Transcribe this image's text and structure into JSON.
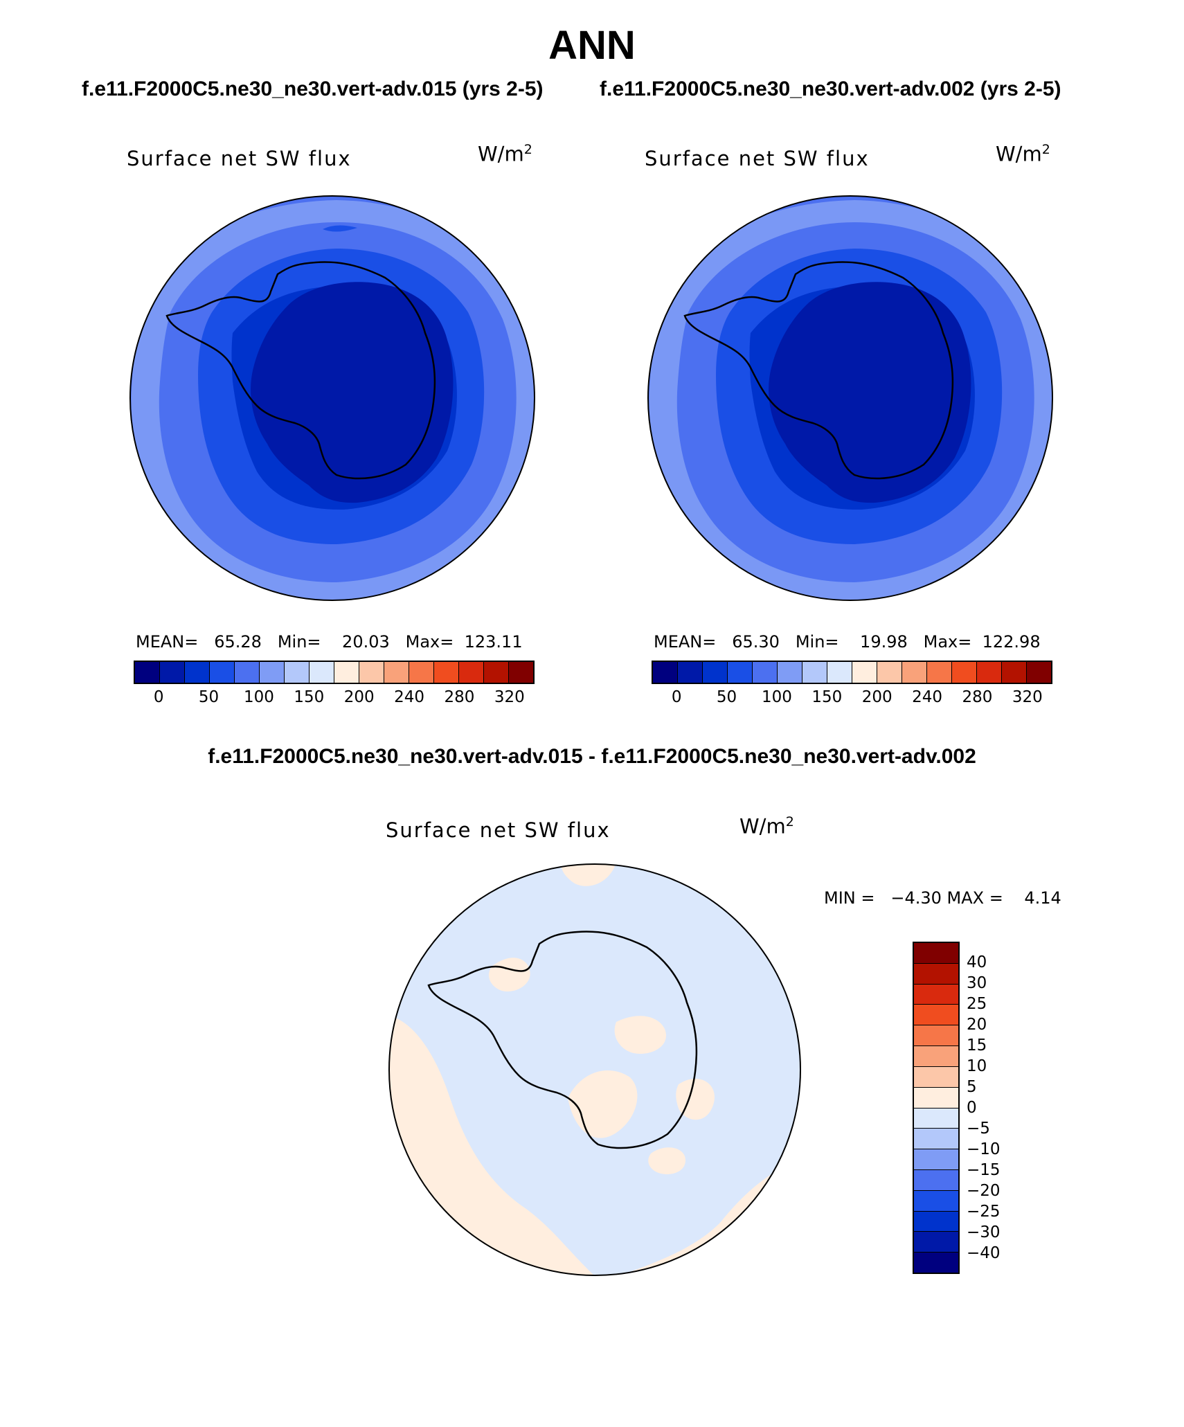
{
  "title": "ANN",
  "panels": [
    {
      "case_title": "f.e11.F2000C5.ne30_ne30.vert-adv.015 (yrs 2-5)",
      "variable": "Surface net SW flux",
      "units_base": "W/m",
      "units_exp": "2",
      "stats": "MEAN=   65.28   Min=    20.03   Max=  123.11",
      "mean": 65.28,
      "min": 20.03,
      "max": 123.11
    },
    {
      "case_title": "f.e11.F2000C5.ne30_ne30.vert-adv.002 (yrs 2-5)",
      "variable": "Surface net SW flux",
      "units_base": "W/m",
      "units_exp": "2",
      "stats": "MEAN=   65.30   Min=    19.98   Max=  122.98",
      "mean": 65.3,
      "min": 19.98,
      "max": 122.98
    }
  ],
  "diff": {
    "title": "f.e11.F2000C5.ne30_ne30.vert-adv.015 - f.e11.F2000C5.ne30_ne30.vert-adv.002",
    "variable": "Surface net SW flux",
    "units_base": "W/m",
    "units_exp": "2",
    "stats": "MIN =   −4.30 MAX =    4.14",
    "min": -4.3,
    "max": 4.14
  },
  "colorbar_main": {
    "colors": [
      "#00007f",
      "#0019a8",
      "#0033cc",
      "#1a4fe6",
      "#4c70f0",
      "#7f9cf5",
      "#b3c8fa",
      "#dbe8fc",
      "#ffeedf",
      "#fcc7a9",
      "#f9a27a",
      "#f67648",
      "#f04d1f",
      "#d92a0e",
      "#b31200",
      "#800000"
    ],
    "labels": [
      "0",
      "50",
      "100",
      "150",
      "200",
      "240",
      "280",
      "320"
    ]
  },
  "colorbar_diff": {
    "colors": [
      "#800000",
      "#b31200",
      "#d92a0e",
      "#f04d1f",
      "#f67648",
      "#f9a27a",
      "#fcc7a9",
      "#ffeedf",
      "#dbe8fc",
      "#b3c8fa",
      "#7f9cf5",
      "#4c70f0",
      "#1a4fe6",
      "#0033cc",
      "#0019a8",
      "#00007f"
    ],
    "labels": [
      "40",
      "30",
      "25",
      "20",
      "15",
      "10",
      "5",
      "0",
      "−5",
      "−10",
      "−15",
      "−20",
      "−25",
      "−30",
      "−40"
    ]
  }
}
